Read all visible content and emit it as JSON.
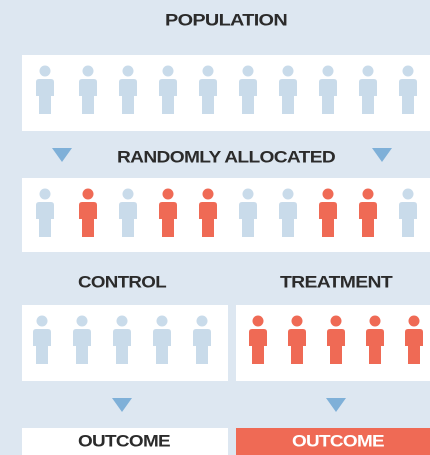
{
  "title": "POPULATION",
  "allocation_label": "RANDOMLY ALLOCATED",
  "groups": [
    {
      "label": "CONTROL",
      "outcome": "OUTCOME"
    },
    {
      "label": "TREATMENT",
      "outcome": "OUTCOME"
    }
  ]
}
